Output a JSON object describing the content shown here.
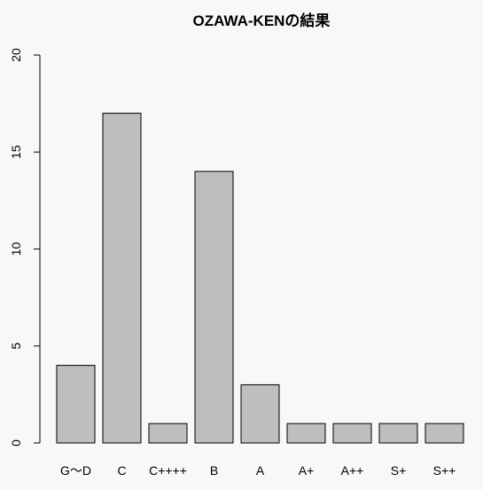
{
  "chart_data": {
    "type": "bar",
    "title": "OZAWA-KENの結果",
    "categories": [
      "G～D",
      "C",
      "C++++",
      "B",
      "A",
      "A+",
      "A++",
      "S+",
      "S++"
    ],
    "values": [
      4,
      17,
      1,
      14,
      3,
      1,
      1,
      1,
      1
    ],
    "color": "#bebebe",
    "ylim": [
      0,
      20
    ],
    "yticks": [
      0,
      5,
      10,
      15,
      20
    ],
    "grid": false
  }
}
